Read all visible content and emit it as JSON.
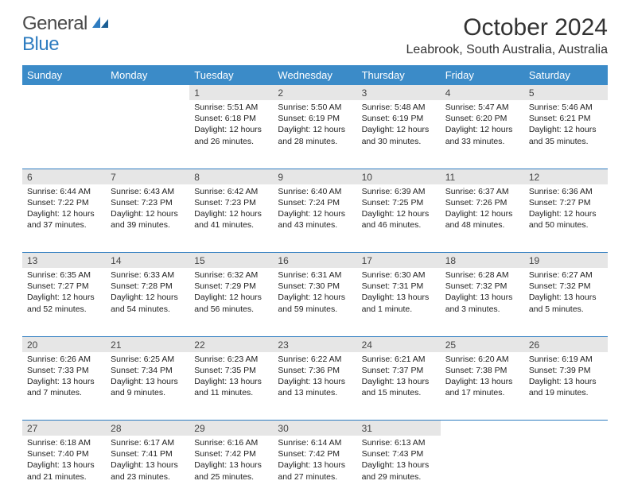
{
  "logo": {
    "text1": "General",
    "text2": "Blue"
  },
  "title": "October 2024",
  "location": "Leabrook, South Australia, Australia",
  "colors": {
    "header_bg": "#3b8bc8",
    "header_fg": "#ffffff",
    "daynum_bg": "#e6e6e6",
    "rule": "#2e7cc0",
    "logo_gray": "#4a4a4a",
    "logo_blue": "#2e7cc0",
    "text": "#222222"
  },
  "weekdays": [
    "Sunday",
    "Monday",
    "Tuesday",
    "Wednesday",
    "Thursday",
    "Friday",
    "Saturday"
  ],
  "weeks": [
    [
      null,
      null,
      {
        "n": "1",
        "sr": "5:51 AM",
        "ss": "6:18 PM",
        "dl": "12 hours and 26 minutes."
      },
      {
        "n": "2",
        "sr": "5:50 AM",
        "ss": "6:19 PM",
        "dl": "12 hours and 28 minutes."
      },
      {
        "n": "3",
        "sr": "5:48 AM",
        "ss": "6:19 PM",
        "dl": "12 hours and 30 minutes."
      },
      {
        "n": "4",
        "sr": "5:47 AM",
        "ss": "6:20 PM",
        "dl": "12 hours and 33 minutes."
      },
      {
        "n": "5",
        "sr": "5:46 AM",
        "ss": "6:21 PM",
        "dl": "12 hours and 35 minutes."
      }
    ],
    [
      {
        "n": "6",
        "sr": "6:44 AM",
        "ss": "7:22 PM",
        "dl": "12 hours and 37 minutes."
      },
      {
        "n": "7",
        "sr": "6:43 AM",
        "ss": "7:23 PM",
        "dl": "12 hours and 39 minutes."
      },
      {
        "n": "8",
        "sr": "6:42 AM",
        "ss": "7:23 PM",
        "dl": "12 hours and 41 minutes."
      },
      {
        "n": "9",
        "sr": "6:40 AM",
        "ss": "7:24 PM",
        "dl": "12 hours and 43 minutes."
      },
      {
        "n": "10",
        "sr": "6:39 AM",
        "ss": "7:25 PM",
        "dl": "12 hours and 46 minutes."
      },
      {
        "n": "11",
        "sr": "6:37 AM",
        "ss": "7:26 PM",
        "dl": "12 hours and 48 minutes."
      },
      {
        "n": "12",
        "sr": "6:36 AM",
        "ss": "7:27 PM",
        "dl": "12 hours and 50 minutes."
      }
    ],
    [
      {
        "n": "13",
        "sr": "6:35 AM",
        "ss": "7:27 PM",
        "dl": "12 hours and 52 minutes."
      },
      {
        "n": "14",
        "sr": "6:33 AM",
        "ss": "7:28 PM",
        "dl": "12 hours and 54 minutes."
      },
      {
        "n": "15",
        "sr": "6:32 AM",
        "ss": "7:29 PM",
        "dl": "12 hours and 56 minutes."
      },
      {
        "n": "16",
        "sr": "6:31 AM",
        "ss": "7:30 PM",
        "dl": "12 hours and 59 minutes."
      },
      {
        "n": "17",
        "sr": "6:30 AM",
        "ss": "7:31 PM",
        "dl": "13 hours and 1 minute."
      },
      {
        "n": "18",
        "sr": "6:28 AM",
        "ss": "7:32 PM",
        "dl": "13 hours and 3 minutes."
      },
      {
        "n": "19",
        "sr": "6:27 AM",
        "ss": "7:32 PM",
        "dl": "13 hours and 5 minutes."
      }
    ],
    [
      {
        "n": "20",
        "sr": "6:26 AM",
        "ss": "7:33 PM",
        "dl": "13 hours and 7 minutes."
      },
      {
        "n": "21",
        "sr": "6:25 AM",
        "ss": "7:34 PM",
        "dl": "13 hours and 9 minutes."
      },
      {
        "n": "22",
        "sr": "6:23 AM",
        "ss": "7:35 PM",
        "dl": "13 hours and 11 minutes."
      },
      {
        "n": "23",
        "sr": "6:22 AM",
        "ss": "7:36 PM",
        "dl": "13 hours and 13 minutes."
      },
      {
        "n": "24",
        "sr": "6:21 AM",
        "ss": "7:37 PM",
        "dl": "13 hours and 15 minutes."
      },
      {
        "n": "25",
        "sr": "6:20 AM",
        "ss": "7:38 PM",
        "dl": "13 hours and 17 minutes."
      },
      {
        "n": "26",
        "sr": "6:19 AM",
        "ss": "7:39 PM",
        "dl": "13 hours and 19 minutes."
      }
    ],
    [
      {
        "n": "27",
        "sr": "6:18 AM",
        "ss": "7:40 PM",
        "dl": "13 hours and 21 minutes."
      },
      {
        "n": "28",
        "sr": "6:17 AM",
        "ss": "7:41 PM",
        "dl": "13 hours and 23 minutes."
      },
      {
        "n": "29",
        "sr": "6:16 AM",
        "ss": "7:42 PM",
        "dl": "13 hours and 25 minutes."
      },
      {
        "n": "30",
        "sr": "6:14 AM",
        "ss": "7:42 PM",
        "dl": "13 hours and 27 minutes."
      },
      {
        "n": "31",
        "sr": "6:13 AM",
        "ss": "7:43 PM",
        "dl": "13 hours and 29 minutes."
      },
      null,
      null
    ]
  ],
  "labels": {
    "sunrise": "Sunrise:",
    "sunset": "Sunset:",
    "daylight": "Daylight:"
  }
}
